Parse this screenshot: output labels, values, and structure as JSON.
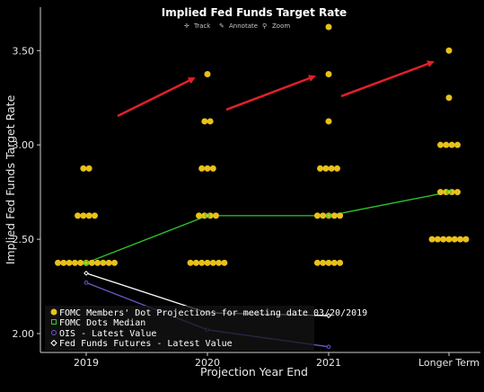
{
  "toolbar": {
    "track_label": "Track",
    "annotate_label": "Annotate",
    "zoom_label": "Zoom"
  },
  "colors": {
    "background": "#000000",
    "dots": "#e8c11a",
    "median": "#2ecc2e",
    "ois": "#6a5acd",
    "futures": "#ffffff",
    "arrows": "#e0202a",
    "axis": "#cfcfcf"
  },
  "chart_data": {
    "type": "scatter",
    "title": "Implied Fed Funds Target Rate",
    "xlabel": "Projection Year End",
    "ylabel": "Implied Fed Funds Target Rate",
    "categories": [
      "2019",
      "2020",
      "2021",
      "Longer Term"
    ],
    "ylim": [
      1.9,
      3.73
    ],
    "yticks": [
      "2.00",
      "2.50",
      "3.00",
      "3.50"
    ],
    "grid": false,
    "legend_position": "bottom-left",
    "series": [
      {
        "name": "FOMC Members' Dot Projections for meeting date 03/20/2019",
        "marker": "filled-circle",
        "points": [
          {
            "x": "2019",
            "y": 2.875,
            "count": 2
          },
          {
            "x": "2019",
            "y": 2.625,
            "count": 4
          },
          {
            "x": "2019",
            "y": 2.375,
            "count": 11
          },
          {
            "x": "2020",
            "y": 3.375,
            "count": 1
          },
          {
            "x": "2020",
            "y": 3.125,
            "count": 2
          },
          {
            "x": "2020",
            "y": 2.875,
            "count": 3
          },
          {
            "x": "2020",
            "y": 2.625,
            "count": 4
          },
          {
            "x": "2020",
            "y": 2.375,
            "count": 7
          },
          {
            "x": "2021",
            "y": 3.625,
            "count": 1
          },
          {
            "x": "2021",
            "y": 3.375,
            "count": 1
          },
          {
            "x": "2021",
            "y": 3.125,
            "count": 1
          },
          {
            "x": "2021",
            "y": 2.875,
            "count": 4
          },
          {
            "x": "2021",
            "y": 2.625,
            "count": 5
          },
          {
            "x": "2021",
            "y": 2.375,
            "count": 5
          },
          {
            "x": "Longer Term",
            "y": 3.5,
            "count": 1
          },
          {
            "x": "Longer Term",
            "y": 3.25,
            "count": 1
          },
          {
            "x": "Longer Term",
            "y": 3.0,
            "count": 4
          },
          {
            "x": "Longer Term",
            "y": 2.75,
            "count": 4
          },
          {
            "x": "Longer Term",
            "y": 2.5,
            "count": 7
          }
        ]
      },
      {
        "name": "FOMC Dots Median",
        "marker": "hollow-square",
        "points": [
          {
            "x": "2019",
            "y": 2.375
          },
          {
            "x": "2020",
            "y": 2.625
          },
          {
            "x": "2021",
            "y": 2.625
          },
          {
            "x": "Longer Term",
            "y": 2.75
          }
        ]
      },
      {
        "name": "OIS - Latest Value",
        "marker": "hollow-circle",
        "points": [
          {
            "x": "2019",
            "y": 2.27
          },
          {
            "x": "2020",
            "y": 2.02
          },
          {
            "x": "2021",
            "y": 1.93
          }
        ]
      },
      {
        "name": "Fed Funds Futures - Latest Value",
        "marker": "hollow-diamond",
        "points": [
          {
            "x": "2019",
            "y": 2.32
          },
          {
            "x": "2020",
            "y": 2.11
          },
          {
            "x": "2021",
            "y": 2.095
          }
        ]
      }
    ]
  }
}
